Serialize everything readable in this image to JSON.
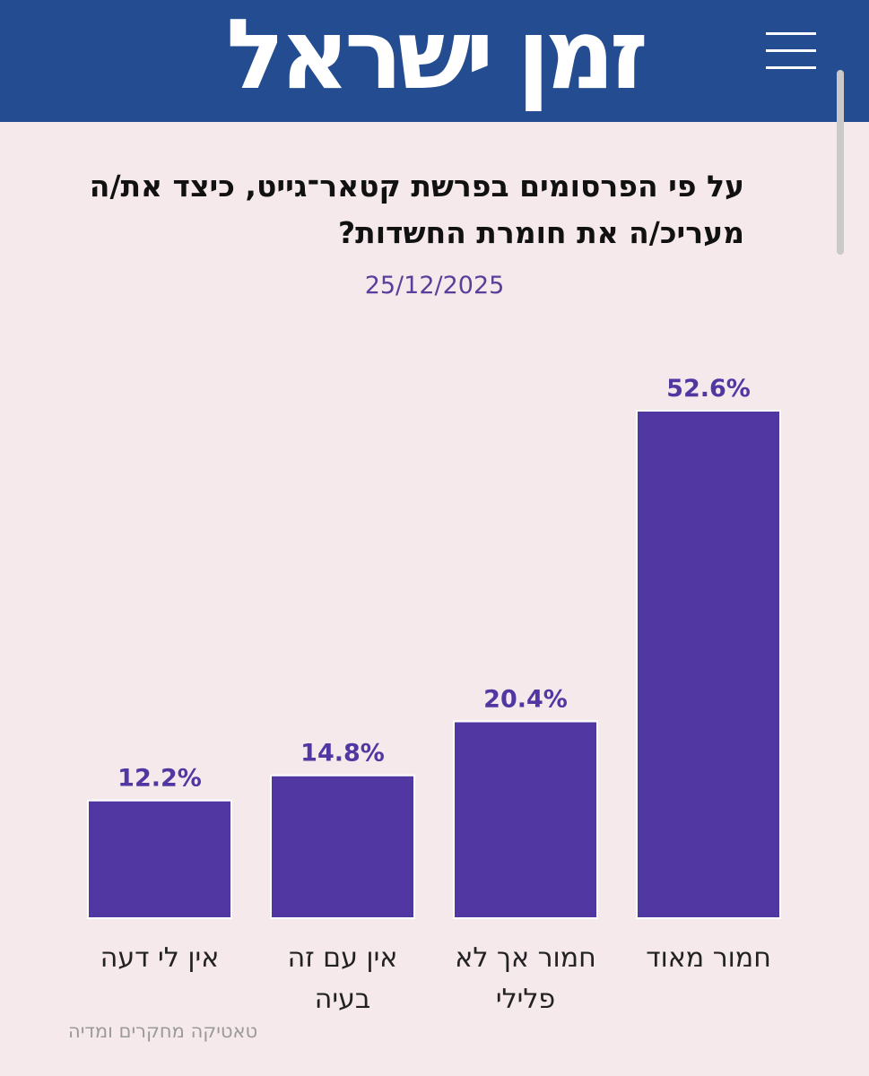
{
  "header": {
    "logo_text": "זמן ישראל"
  },
  "icons": {
    "menu": "hamburger-menu-icon"
  },
  "colors": {
    "header_bg": "#234c91",
    "page_bg": "#f5e9ec",
    "bar": "#5137a2",
    "date_text": "#5a3f9a"
  },
  "chart_data": {
    "type": "bar",
    "title": "על פי הפרסומים בפרשת קטאר־גייט, כיצד את/ה מעריכ/ה את חומרת החשדות?",
    "subtitle": "25/12/2025",
    "categories": [
      [
        "חמור מאוד"
      ],
      [
        "חמור אך לא",
        "פלילי"
      ],
      [
        "אין עם זה",
        "בעיה"
      ],
      [
        "אין לי דעה"
      ]
    ],
    "values": [
      52.6,
      20.4,
      14.8,
      12.2
    ],
    "value_labels": [
      "52.6%",
      "20.4%",
      "14.8%",
      "12.2%"
    ],
    "unit": "%",
    "ylim": [
      0,
      52.6
    ],
    "grid": false,
    "legend": "none",
    "direction": "rtl"
  },
  "footer": {
    "source": "טאטיקה מחקרים ומדיה"
  }
}
